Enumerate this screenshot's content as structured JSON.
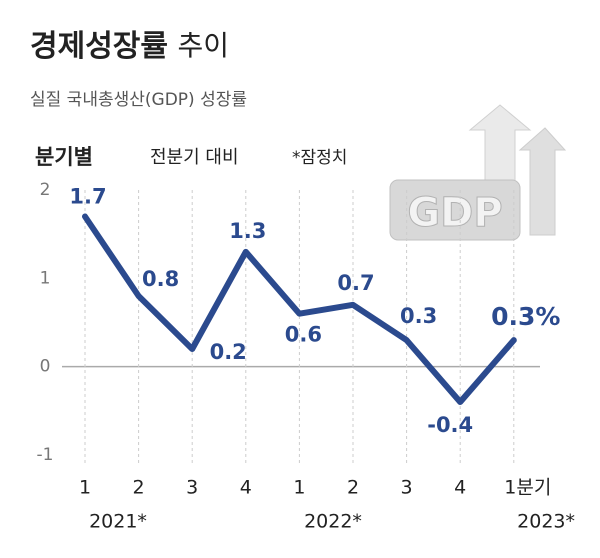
{
  "chart_data": {
    "type": "line",
    "title": "경제성장률",
    "title_suffix": "추이",
    "subtitle": "실질 국내총생산(GDP) 성장률",
    "period_label": "분기별",
    "basis_label": "전분기 대비",
    "note": "*잠정치",
    "illustration_text": "GDP",
    "categories": [
      "1",
      "2",
      "3",
      "4",
      "1",
      "2",
      "3",
      "4",
      "1분기"
    ],
    "year_labels": [
      "2021*",
      "2022*",
      "2023*"
    ],
    "series": [
      {
        "name": "경제성장률",
        "color": "#2b4a8e",
        "values": [
          1.7,
          0.8,
          0.2,
          1.3,
          0.6,
          0.7,
          0.3,
          -0.4,
          0.3
        ],
        "value_labels": [
          "1.7",
          "0.8",
          "0.2",
          "1.3",
          "0.6",
          "0.7",
          "0.3",
          "-0.4",
          "0.3%"
        ]
      }
    ],
    "ylim": [
      -1,
      2
    ],
    "yticks": [
      -1,
      0,
      1,
      2
    ]
  }
}
